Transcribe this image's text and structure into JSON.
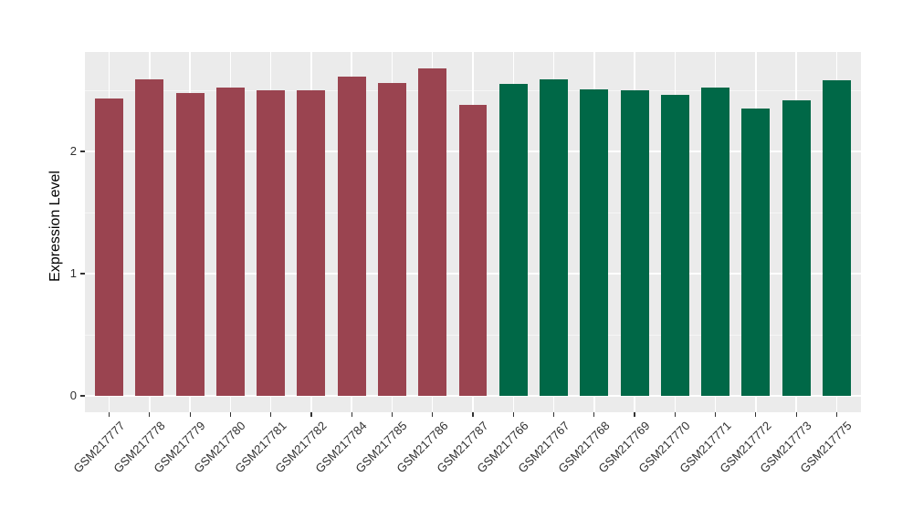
{
  "figure": {
    "background": "#FFFFFF"
  },
  "chart_data": {
    "type": "bar",
    "title": "",
    "xlabel": "",
    "ylabel": "Expression Level",
    "ylim": [
      0,
      2.81
    ],
    "yticks": [
      0,
      1,
      2
    ],
    "yticks_minor": [
      0.5,
      1.5,
      2.5
    ],
    "grid": true,
    "legend": "none",
    "panel_bg": "#EBEBEB",
    "grid_major_color": "#FFFFFF",
    "grid_minor_color": "rgba(255,255,255,0.55)",
    "tick_mark_color": "#333333",
    "axis_text_color": "#303030",
    "groups": {
      "left": {
        "color": "#9A4450"
      },
      "right": {
        "color": "#006847"
      }
    },
    "bars": [
      {
        "label": "GSM217777",
        "value": 2.43,
        "group": "left"
      },
      {
        "label": "GSM217778",
        "value": 2.59,
        "group": "left"
      },
      {
        "label": "GSM217779",
        "value": 2.48,
        "group": "left"
      },
      {
        "label": "GSM217780",
        "value": 2.52,
        "group": "left"
      },
      {
        "label": "GSM217781",
        "value": 2.5,
        "group": "left"
      },
      {
        "label": "GSM217782",
        "value": 2.5,
        "group": "left"
      },
      {
        "label": "GSM217784",
        "value": 2.61,
        "group": "left"
      },
      {
        "label": "GSM217785",
        "value": 2.56,
        "group": "left"
      },
      {
        "label": "GSM217786",
        "value": 2.68,
        "group": "left"
      },
      {
        "label": "GSM217787",
        "value": 2.38,
        "group": "left"
      },
      {
        "label": "GSM217766",
        "value": 2.55,
        "group": "right"
      },
      {
        "label": "GSM217767",
        "value": 2.59,
        "group": "right"
      },
      {
        "label": "GSM217768",
        "value": 2.51,
        "group": "right"
      },
      {
        "label": "GSM217769",
        "value": 2.5,
        "group": "right"
      },
      {
        "label": "GSM217770",
        "value": 2.46,
        "group": "right"
      },
      {
        "label": "GSM217771",
        "value": 2.52,
        "group": "right"
      },
      {
        "label": "GSM217772",
        "value": 2.35,
        "group": "right"
      },
      {
        "label": "GSM217773",
        "value": 2.42,
        "group": "right"
      },
      {
        "label": "GSM217775",
        "value": 2.58,
        "group": "right"
      }
    ]
  }
}
